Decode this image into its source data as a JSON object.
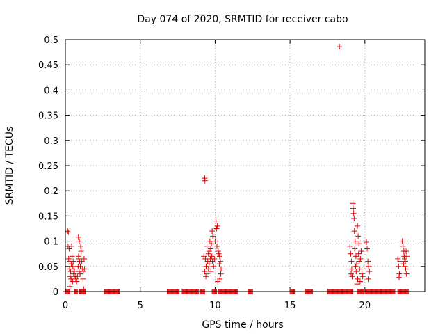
{
  "chart_data": {
    "type": "scatter",
    "title": "Day 074 of 2020, SRMTID for receiver cabo",
    "xlabel": "GPS time / hours",
    "ylabel": "SRMTID / TECUs",
    "xlim": [
      0,
      24
    ],
    "ylim": [
      0,
      0.5
    ],
    "xticks": [
      0,
      5,
      10,
      15,
      20
    ],
    "xtick_labels": [
      "0",
      "5",
      "10",
      "15",
      "20"
    ],
    "yticks": [
      0,
      0.05,
      0.1,
      0.15,
      0.2,
      0.25,
      0.3,
      0.35,
      0.4,
      0.45,
      0.5
    ],
    "ytick_labels": [
      "0",
      "0.05",
      "0.1",
      "0.15",
      "0.2",
      "0.25",
      "0.3",
      "0.35",
      "0.4",
      "0.45",
      "0.5"
    ],
    "grid": true,
    "marker": "+",
    "color": "#e00000",
    "series": [
      {
        "name": "SRMTID",
        "points": [
          [
            0.15,
            0.12
          ],
          [
            0.2,
            0.118
          ],
          [
            0.18,
            0.09
          ],
          [
            0.25,
            0.085
          ],
          [
            0.22,
            0.065
          ],
          [
            0.3,
            0.06
          ],
          [
            0.28,
            0.045
          ],
          [
            0.35,
            0.04
          ],
          [
            0.32,
            0.03
          ],
          [
            0.4,
            0.055
          ],
          [
            0.45,
            0.07
          ],
          [
            0.5,
            0.05
          ],
          [
            0.38,
            0.025
          ],
          [
            0.42,
            0.09
          ],
          [
            0.55,
            0.035
          ],
          [
            0.6,
            0.04
          ],
          [
            0.48,
            0.02
          ],
          [
            0.52,
            0.06
          ],
          [
            0.58,
            0.045
          ],
          [
            0.65,
            0.03
          ],
          [
            0.3,
            0.01
          ],
          [
            0.7,
            0.025
          ],
          [
            0.75,
            0.02
          ],
          [
            0.8,
            0.03
          ],
          [
            0.85,
            0.05
          ],
          [
            0.88,
            0.07
          ],
          [
            0.9,
            0.065
          ],
          [
            0.95,
            0.06
          ],
          [
            0.92,
            0.04
          ],
          [
            0.98,
            0.035
          ],
          [
            1.0,
            0.05
          ],
          [
            0.87,
            0.108
          ],
          [
            0.93,
            0.1
          ],
          [
            1.02,
            0.09
          ],
          [
            1.05,
            0.08
          ],
          [
            1.1,
            0.06
          ],
          [
            1.15,
            0.045
          ],
          [
            1.2,
            0.04
          ],
          [
            1.25,
            0.065
          ],
          [
            1.18,
            0.025
          ],
          [
            1.22,
            0.005
          ],
          [
            1.28,
            0.045
          ],
          [
            9.3,
            0.225
          ],
          [
            9.32,
            0.22
          ],
          [
            9.25,
            0.07
          ],
          [
            9.35,
            0.065
          ],
          [
            9.4,
            0.05
          ],
          [
            9.3,
            0.04
          ],
          [
            9.38,
            0.03
          ],
          [
            9.45,
            0.035
          ],
          [
            9.5,
            0.06
          ],
          [
            9.55,
            0.075
          ],
          [
            9.45,
            0.09
          ],
          [
            9.6,
            0.08
          ],
          [
            9.65,
            0.1
          ],
          [
            9.7,
            0.085
          ],
          [
            9.55,
            0.045
          ],
          [
            9.6,
            0.055
          ],
          [
            9.75,
            0.095
          ],
          [
            9.8,
            0.12
          ],
          [
            9.85,
            0.11
          ],
          [
            9.78,
            0.07
          ],
          [
            9.82,
            0.06
          ],
          [
            9.9,
            0.05
          ],
          [
            9.95,
            0.065
          ],
          [
            10.0,
            0.1
          ],
          [
            10.05,
            0.14
          ],
          [
            10.1,
            0.125
          ],
          [
            10.15,
            0.13
          ],
          [
            10.12,
            0.09
          ],
          [
            10.2,
            0.08
          ],
          [
            10.25,
            0.075
          ],
          [
            10.3,
            0.07
          ],
          [
            10.28,
            0.055
          ],
          [
            10.35,
            0.06
          ],
          [
            10.4,
            0.045
          ],
          [
            10.38,
            0.035
          ],
          [
            10.32,
            0.025
          ],
          [
            9.72,
            0.04
          ],
          [
            9.68,
            0.065
          ],
          [
            10.18,
            0.02
          ],
          [
            18.3,
            0.486
          ],
          [
            19.0,
            0.09
          ],
          [
            19.05,
            0.075
          ],
          [
            19.1,
            0.06
          ],
          [
            19.12,
            0.045
          ],
          [
            19.08,
            0.035
          ],
          [
            19.15,
            0.03
          ],
          [
            19.2,
            0.175
          ],
          [
            19.22,
            0.165
          ],
          [
            19.25,
            0.155
          ],
          [
            19.28,
            0.145
          ],
          [
            19.3,
            0.12
          ],
          [
            19.35,
            0.1
          ],
          [
            19.32,
            0.085
          ],
          [
            19.4,
            0.07
          ],
          [
            19.45,
            0.055
          ],
          [
            19.38,
            0.05
          ],
          [
            19.42,
            0.04
          ],
          [
            19.5,
            0.13
          ],
          [
            19.55,
            0.11
          ],
          [
            19.6,
            0.095
          ],
          [
            19.58,
            0.075
          ],
          [
            19.62,
            0.06
          ],
          [
            19.65,
            0.045
          ],
          [
            19.7,
            0.065
          ],
          [
            19.75,
            0.08
          ],
          [
            19.68,
            0.02
          ],
          [
            19.8,
            0.035
          ],
          [
            19.85,
            0.03
          ],
          [
            20.1,
            0.098
          ],
          [
            20.15,
            0.085
          ],
          [
            20.2,
            0.06
          ],
          [
            20.25,
            0.05
          ],
          [
            20.3,
            0.04
          ],
          [
            20.22,
            0.025
          ],
          [
            19.52,
            0.025
          ],
          [
            19.48,
            0.015
          ],
          [
            22.2,
            0.065
          ],
          [
            22.25,
            0.05
          ],
          [
            22.3,
            0.035
          ],
          [
            22.28,
            0.028
          ],
          [
            22.35,
            0.06
          ],
          [
            22.5,
            0.1
          ],
          [
            22.55,
            0.09
          ],
          [
            22.6,
            0.08
          ],
          [
            22.62,
            0.07
          ],
          [
            22.65,
            0.065
          ],
          [
            22.7,
            0.06
          ],
          [
            22.68,
            0.05
          ],
          [
            22.72,
            0.045
          ],
          [
            22.75,
            0.08
          ],
          [
            22.58,
            0.055
          ],
          [
            22.8,
            0.07
          ],
          [
            22.78,
            0.035
          ]
        ]
      }
    ],
    "zero_segments": [
      [
        0.0,
        0.3
      ],
      [
        0.6,
        0.8
      ],
      [
        0.9,
        1.35
      ],
      [
        2.6,
        3.6
      ],
      [
        6.8,
        7.6
      ],
      [
        7.8,
        8.9
      ],
      [
        9.0,
        9.3
      ],
      [
        9.8,
        10.1
      ],
      [
        10.2,
        11.5
      ],
      [
        12.2,
        12.5
      ],
      [
        15.0,
        15.3
      ],
      [
        16.0,
        16.5
      ],
      [
        17.5,
        19.2
      ],
      [
        19.5,
        19.9
      ],
      [
        20.0,
        22.0
      ],
      [
        22.2,
        22.9
      ]
    ]
  }
}
